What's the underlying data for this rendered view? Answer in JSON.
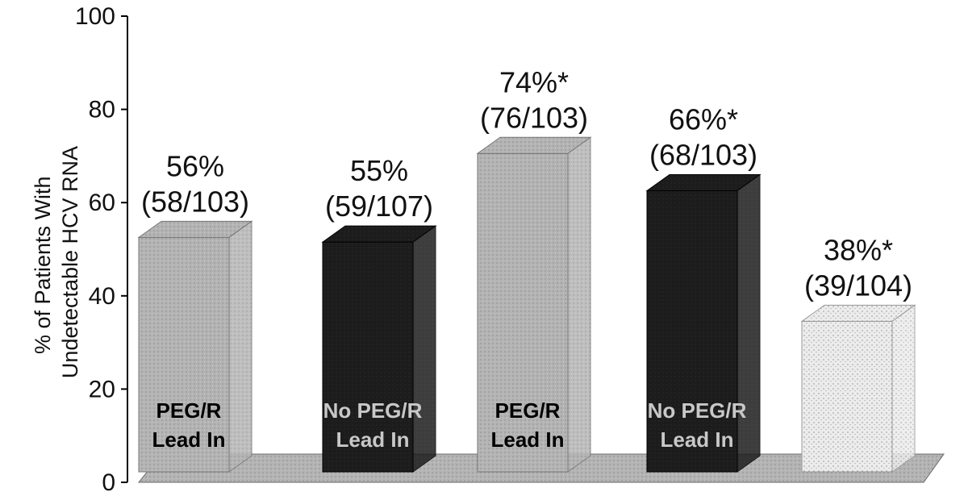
{
  "chart_data": {
    "type": "bar",
    "title": "",
    "xlabel": "",
    "ylabel": [
      "% of Patients With",
      "Undetectable HCV RNA"
    ],
    "ylim": [
      0,
      100
    ],
    "yticks": [
      0,
      20,
      40,
      60,
      80,
      100
    ],
    "grid": false,
    "three_d": true,
    "bars": [
      {
        "value": 56,
        "pct_label": "56%",
        "count_label": "(58/103)",
        "inside_label": [
          "PEG/R",
          "Lead In"
        ],
        "color": "#b3b3b3",
        "text_color": "#000000"
      },
      {
        "value": 55,
        "pct_label": "55%",
        "count_label": "(59/107)",
        "inside_label": [
          "No PEG/R",
          "Lead In"
        ],
        "color": "#1c1c1c",
        "text_color": "#c8c8c8"
      },
      {
        "value": 74,
        "pct_label": "74%*",
        "count_label": "(76/103)",
        "inside_label": [
          "PEG/R",
          "Lead In"
        ],
        "color": "#b3b3b3",
        "text_color": "#000000"
      },
      {
        "value": 66,
        "pct_label": "66%*",
        "count_label": "(68/103)",
        "inside_label": [
          "No PEG/R",
          "Lead In"
        ],
        "color": "#1c1c1c",
        "text_color": "#c8c8c8"
      },
      {
        "value": 38,
        "pct_label": "38%*",
        "count_label": "(39/104)",
        "inside_label": [],
        "color": "#e4e4e4",
        "text_color": "#000000"
      }
    ]
  }
}
